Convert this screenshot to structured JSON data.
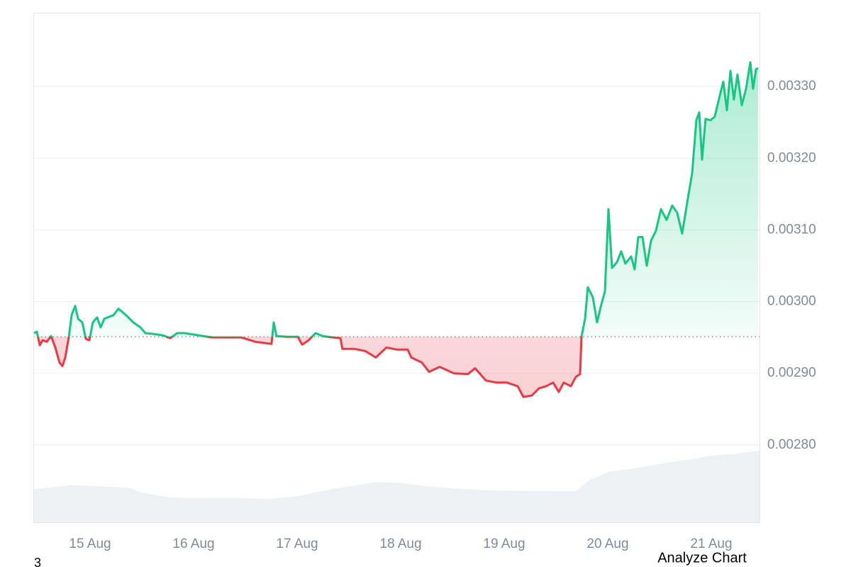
{
  "chart_data": {
    "type": "line",
    "xlim": [
      14.452,
      21.466
    ],
    "xticks": [
      {
        "value": 15,
        "label": "15 Aug"
      },
      {
        "value": 16,
        "label": "16 Aug"
      },
      {
        "value": 17,
        "label": "17 Aug"
      },
      {
        "value": 18,
        "label": "18 Aug"
      },
      {
        "value": 19,
        "label": "19 Aug"
      },
      {
        "value": 20,
        "label": "20 Aug"
      },
      {
        "value": 21,
        "label": "21 Aug"
      }
    ],
    "ylim": [
      0.002692,
      0.003403
    ],
    "yticks": [
      {
        "value": 0.0028,
        "label": "0.00280"
      },
      {
        "value": 0.0029,
        "label": "0.00290"
      },
      {
        "value": 0.003,
        "label": "0.00300"
      },
      {
        "value": 0.0031,
        "label": "0.00310"
      },
      {
        "value": 0.0032,
        "label": "0.00320"
      },
      {
        "value": 0.0033,
        "label": "0.00330"
      }
    ],
    "y2lim": [
      0,
      200
    ],
    "baseline": 0.002951,
    "grid": true,
    "series": [
      {
        "color_up": "#16c784",
        "color_down": "#ea3943",
        "x": [
          14.452,
          14.486,
          14.514,
          14.541,
          14.582,
          14.623,
          14.664,
          14.705,
          14.733,
          14.76,
          14.795,
          14.822,
          14.856,
          14.884,
          14.925,
          14.959,
          14.993,
          15.027,
          15.068,
          15.103,
          15.137,
          15.171,
          15.226,
          15.274,
          15.308,
          15.363,
          15.418,
          15.486,
          15.534,
          15.603,
          15.705,
          15.774,
          15.842,
          15.911,
          16.048,
          16.185,
          16.322,
          16.459,
          16.596,
          16.753,
          16.774,
          16.801,
          16.904,
          17.007,
          17.048,
          17.11,
          17.178,
          17.247,
          17.349,
          17.418,
          17.438,
          17.555,
          17.658,
          17.76,
          17.863,
          17.966,
          18.068,
          18.103,
          18.205,
          18.274,
          18.377,
          18.514,
          18.651,
          18.719,
          18.822,
          18.925,
          19.027,
          19.13,
          19.185,
          19.267,
          19.336,
          19.404,
          19.473,
          19.527,
          19.575,
          19.644,
          19.692,
          19.733,
          19.747,
          19.781,
          19.808,
          19.856,
          19.897,
          19.938,
          19.973,
          20.007,
          20.041,
          20.089,
          20.13,
          20.171,
          20.226,
          20.26,
          20.295,
          20.336,
          20.377,
          20.418,
          20.466,
          20.514,
          20.568,
          20.623,
          20.671,
          20.719,
          20.774,
          20.815,
          20.856,
          20.884,
          20.911,
          20.945,
          20.993,
          21.034,
          21.082,
          21.116,
          21.151,
          21.185,
          21.219,
          21.253,
          21.295,
          21.336,
          21.377,
          21.404,
          21.432,
          21.452
        ],
        "values": [
          0.002956,
          0.002958,
          0.002939,
          0.002946,
          0.002944,
          0.002952,
          0.002936,
          0.002915,
          0.00291,
          0.002922,
          0.002951,
          0.002981,
          0.002994,
          0.002976,
          0.002971,
          0.002948,
          0.002946,
          0.002971,
          0.002978,
          0.002964,
          0.002976,
          0.002978,
          0.002981,
          0.00299,
          0.002986,
          0.002979,
          0.002971,
          0.002964,
          0.002956,
          0.002955,
          0.002953,
          0.002949,
          0.002956,
          0.002956,
          0.002953,
          0.00295,
          0.00295,
          0.00295,
          0.002944,
          0.002941,
          0.002971,
          0.002952,
          0.002951,
          0.002951,
          0.00294,
          0.002946,
          0.002956,
          0.002952,
          0.00295,
          0.002949,
          0.002934,
          0.002934,
          0.002931,
          0.002922,
          0.002936,
          0.002933,
          0.002933,
          0.002922,
          0.002915,
          0.002902,
          0.002909,
          0.0029,
          0.002899,
          0.002907,
          0.00289,
          0.002887,
          0.002887,
          0.002882,
          0.002867,
          0.002869,
          0.002879,
          0.002882,
          0.002887,
          0.002874,
          0.002887,
          0.002882,
          0.002895,
          0.002899,
          0.002951,
          0.002976,
          0.00302,
          0.003006,
          0.002971,
          0.002996,
          0.003014,
          0.003129,
          0.003047,
          0.003055,
          0.00307,
          0.003053,
          0.003063,
          0.003045,
          0.00309,
          0.00309,
          0.00305,
          0.003085,
          0.003099,
          0.003129,
          0.003114,
          0.003134,
          0.003124,
          0.003095,
          0.003144,
          0.003179,
          0.003253,
          0.003264,
          0.003198,
          0.003255,
          0.003253,
          0.003258,
          0.003287,
          0.003307,
          0.003267,
          0.003322,
          0.003282,
          0.003317,
          0.003274,
          0.003297,
          0.003334,
          0.003297,
          0.003324,
          0.003326
        ]
      },
      {
        "axis": "y2",
        "color": "#eef1f4",
        "x": [
          14.452,
          14.747,
          14.815,
          15.363,
          15.5,
          15.774,
          16.185,
          16.459,
          16.733,
          17.007,
          17.349,
          17.76,
          17.966,
          18.24,
          18.582,
          18.925,
          19.473,
          19.692,
          19.815,
          20.021,
          20.295,
          20.568,
          20.842,
          20.979,
          21.253,
          21.466
        ],
        "values": [
          13.1,
          14.2,
          14.7,
          13.6,
          11.7,
          9.7,
          9.5,
          9.5,
          9.2,
          10.3,
          13.1,
          15.8,
          15.6,
          14.2,
          13.1,
          12.5,
          12.2,
          12.2,
          16.4,
          20.0,
          21.4,
          23.4,
          25.0,
          26.1,
          27.0,
          28.1
        ]
      }
    ],
    "footer_left": "3",
    "button": "Analyze Chart"
  }
}
